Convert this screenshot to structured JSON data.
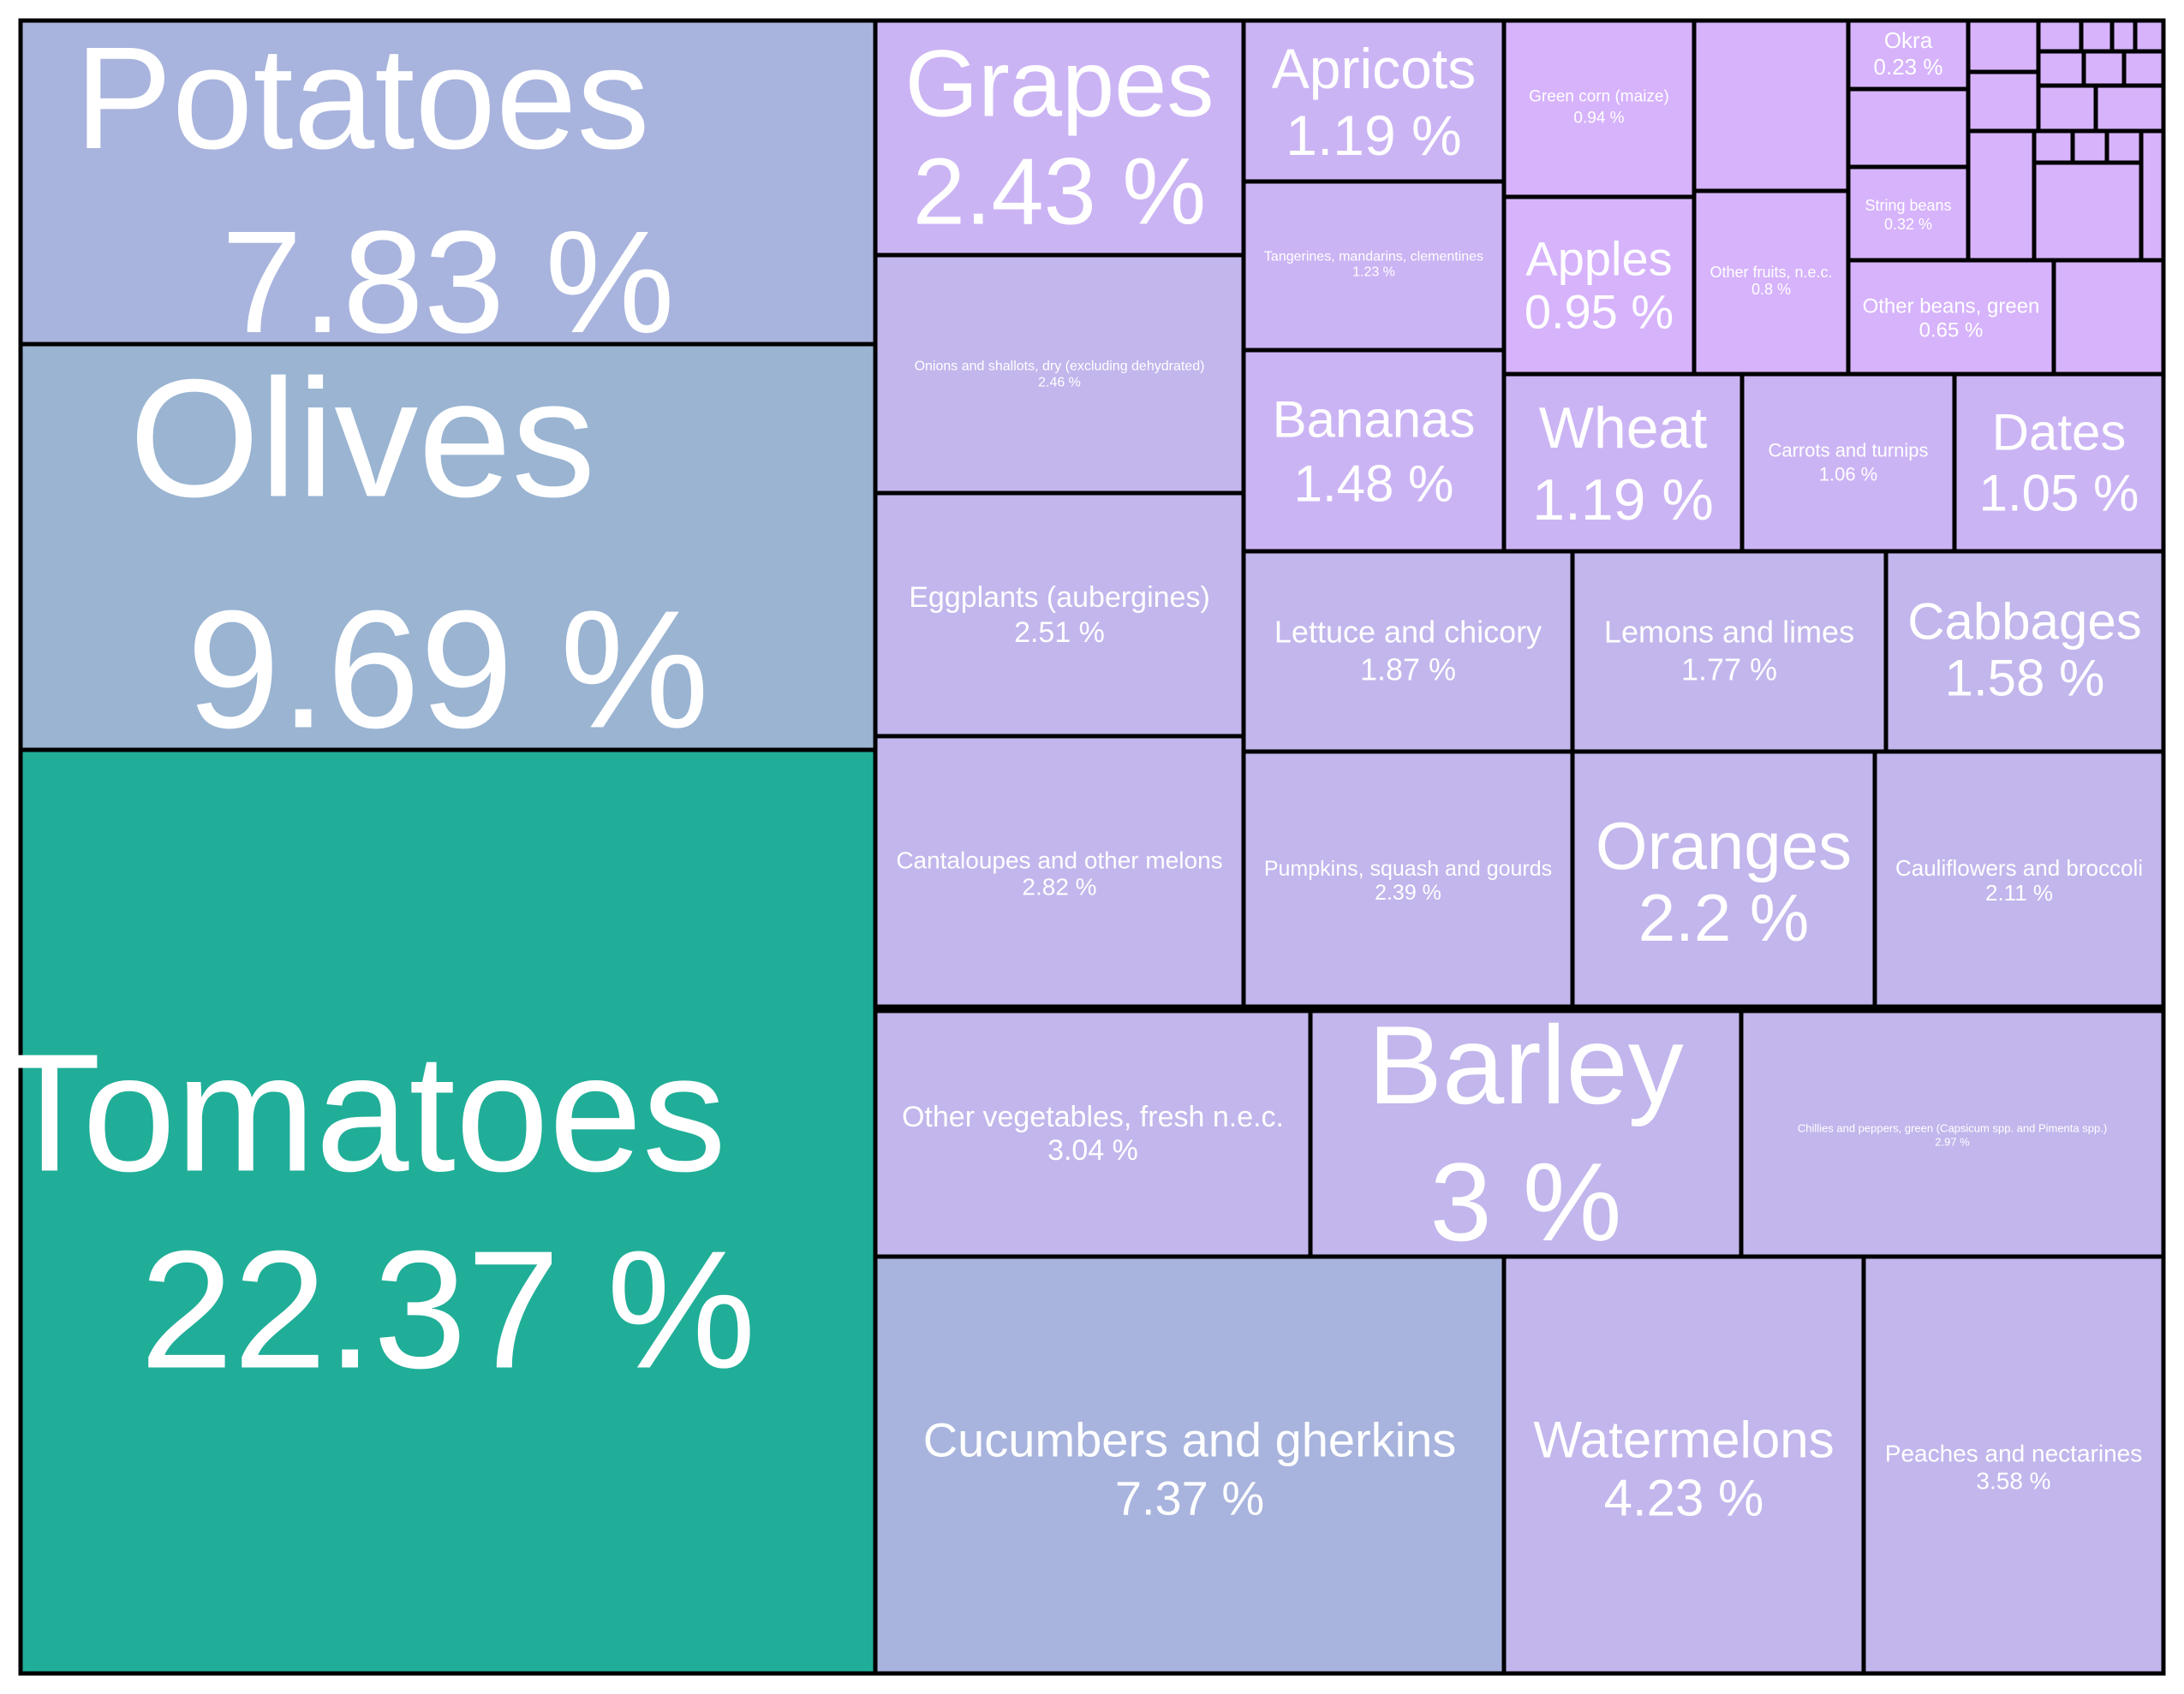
{
  "chart_data": {
    "type": "treemap",
    "title": "",
    "unit": "%",
    "items": [
      {
        "name": "Tomatoes",
        "value": 22.37,
        "label": "22.37 %"
      },
      {
        "name": "Olives",
        "value": 9.69,
        "label": "9.69 %"
      },
      {
        "name": "Potatoes",
        "value": 7.83,
        "label": "7.83 %"
      },
      {
        "name": "Cucumbers and gherkins",
        "value": 7.37,
        "label": "7.37 %"
      },
      {
        "name": "Watermelons",
        "value": 4.23,
        "label": "4.23 %"
      },
      {
        "name": "Peaches and nectarines",
        "value": 3.58,
        "label": "3.58 %"
      },
      {
        "name": "Other vegetables, fresh n.e.c.",
        "value": 3.04,
        "label": "3.04 %"
      },
      {
        "name": "Barley",
        "value": 3,
        "label": "3 %"
      },
      {
        "name": "Chillies and peppers, green (Capsicum spp. and Pimenta spp.)",
        "value": 2.97,
        "label": "2.97 %"
      },
      {
        "name": "Cantaloupes and other melons",
        "value": 2.82,
        "label": "2.82 %"
      },
      {
        "name": "Pumpkins, squash and gourds",
        "value": 2.39,
        "label": "2.39 %"
      },
      {
        "name": "Oranges",
        "value": 2.2,
        "label": "2.2 %"
      },
      {
        "name": "Cauliflowers and broccoli",
        "value": 2.11,
        "label": "2.11 %"
      },
      {
        "name": "Eggplants (aubergines)",
        "value": 2.51,
        "label": "2.51 %"
      },
      {
        "name": "Lettuce and chicory",
        "value": 1.87,
        "label": "1.87 %"
      },
      {
        "name": "Lemons and limes",
        "value": 1.77,
        "label": "1.77 %"
      },
      {
        "name": "Cabbages",
        "value": 1.58,
        "label": "1.58 %"
      },
      {
        "name": "Onions and shallots, dry (excluding dehydrated)",
        "value": 2.46,
        "label": "2.46 %"
      },
      {
        "name": "Bananas",
        "value": 1.48,
        "label": "1.48 %"
      },
      {
        "name": "Wheat",
        "value": 1.19,
        "label": "1.19 %"
      },
      {
        "name": "Carrots and turnips",
        "value": 1.06,
        "label": "1.06 %"
      },
      {
        "name": "Dates",
        "value": 1.05,
        "label": "1.05 %"
      },
      {
        "name": "Grapes",
        "value": 2.43,
        "label": "2.43 %"
      },
      {
        "name": "Apricots",
        "value": 1.19,
        "label": "1.19 %"
      },
      {
        "name": "Tangerines, mandarins, clementines",
        "value": 1.23,
        "label": "1.23 %"
      },
      {
        "name": "Green corn (maize)",
        "value": 0.94,
        "label": "0.94 %"
      },
      {
        "name": "Apples",
        "value": 0.95,
        "label": "0.95 %"
      },
      {
        "name": "Other fruits, n.e.c.",
        "value": 0.8,
        "label": "0.8 %"
      },
      {
        "name": "Okra",
        "value": 0.23,
        "label": "0.23 %"
      },
      {
        "name": "String beans",
        "value": 0.32,
        "label": "0.32 %"
      },
      {
        "name": "Other beans, green",
        "value": 0.65,
        "label": "0.65 %"
      }
    ],
    "unlabeled_tile_count": 20,
    "colors": {
      "tomatoes": "#20ae98",
      "olives": "#9ab4d2",
      "potatoes_cucumbers": "#a8b4dd",
      "mid": "#c2b6ec",
      "light": "#cbb4f4",
      "small": "#d6b3fb",
      "label": "#ffffff",
      "border": "#000000"
    }
  }
}
